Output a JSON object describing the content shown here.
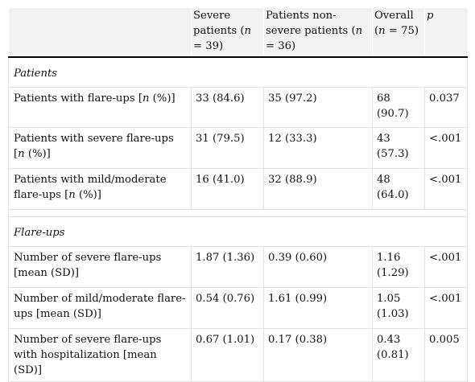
{
  "header": {
    "col1": "",
    "col2": [
      "Severe patients (",
      "n",
      " = 39)"
    ],
    "col3": [
      "Patients non-severe patients (",
      "n",
      " = 36)"
    ],
    "col4": [
      "Overall (",
      "n",
      " = 75)"
    ],
    "col5": "p"
  },
  "sections": [
    {
      "title": "Patients",
      "rows": [
        {
          "label": [
            "Patients with flare-ups [",
            "n",
            " (%)]"
          ],
          "severe": "33 (84.6)",
          "non_severe": "35 (97.2)",
          "overall": "68 (90.7)",
          "p": "0.037"
        },
        {
          "label": [
            "Patients with severe flare-ups [",
            "n",
            " (%)]"
          ],
          "severe": "31 (79.5)",
          "non_severe": "12 (33.3)",
          "overall": "43 (57.3)",
          "p": "<.001"
        },
        {
          "label": [
            "Patients with mild/moderate flare-ups [",
            "n",
            " (%)]"
          ],
          "severe": "16 (41.0)",
          "non_severe": "32 (88.9)",
          "overall": "48 (64.0)",
          "p": "<.001"
        }
      ]
    },
    {
      "title": "Flare-ups",
      "rows": [
        {
          "label": [
            "Number of severe flare-ups [mean (SD)]",
            "",
            ""
          ],
          "severe": "1.87 (1.36)",
          "non_severe": "0.39 (0.60)",
          "overall": "1.16 (1.29)",
          "p": "<.001"
        },
        {
          "label": [
            "Number of mild/moderate flare-ups [mean (SD)]",
            "",
            ""
          ],
          "severe": "0.54 (0.76)",
          "non_severe": "1.61 (0.99)",
          "overall": "1.05 (1.03)",
          "p": "<.001"
        },
        {
          "label": [
            "Number of severe flare-ups with hospitalization [mean (SD)]",
            "",
            ""
          ],
          "severe": "0.67 (1.01)",
          "non_severe": "0.17 (0.38)",
          "overall": "0.43 (0.81)",
          "p": "0.005"
        }
      ]
    }
  ]
}
